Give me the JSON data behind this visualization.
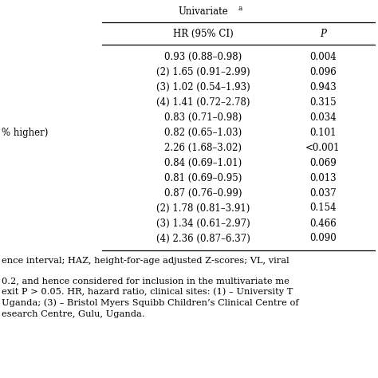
{
  "col_headers": [
    "HR (95% CI)",
    "P"
  ],
  "rows": [
    [
      "0.93 (0.88–0.98)",
      "0.004"
    ],
    [
      "(2) 1.65 (0.91–2.99)",
      "0.096"
    ],
    [
      "(3) 1.02 (0.54–1.93)",
      "0.943"
    ],
    [
      "(4) 1.41 (0.72–2.78)",
      "0.315"
    ],
    [
      "0.83 (0.71–0.98)",
      "0.034"
    ],
    [
      "0.82 (0.65–1.03)",
      "0.101"
    ],
    [
      "2.26 (1.68–3.02)",
      "<0.001"
    ],
    [
      "0.84 (0.69–1.01)",
      "0.069"
    ],
    [
      "0.81 (0.69–0.95)",
      "0.013"
    ],
    [
      "0.87 (0.76–0.99)",
      "0.037"
    ],
    [
      "(2) 1.78 (0.81–3.91)",
      "0.154"
    ],
    [
      "(3) 1.34 (0.61–2.97)",
      "0.466"
    ],
    [
      "(4) 2.36 (0.87–6.37)",
      "0.090"
    ]
  ],
  "left_labels": [
    "",
    "",
    "",
    "",
    "",
    "% higher)",
    "",
    "",
    "",
    "",
    "",
    "",
    ""
  ],
  "footer_line1": "ence interval; HAZ, height-for-age adjusted Z-scores; VL, viral",
  "footer_line2": "0.2, and hence considered for inclusion in the multivariate me",
  "footer_line3": "exit P > 0.05. HR, hazard ratio, clinical sites: (1) – University T",
  "footer_line4": "Uganda; (3) – Bristol Myers Squibb Children’s Clinical Centre of",
  "footer_line5": "esearch Centre, Gulu, Uganda.",
  "bg_color": "#ffffff",
  "text_color": "#000000",
  "line_color": "#000000"
}
